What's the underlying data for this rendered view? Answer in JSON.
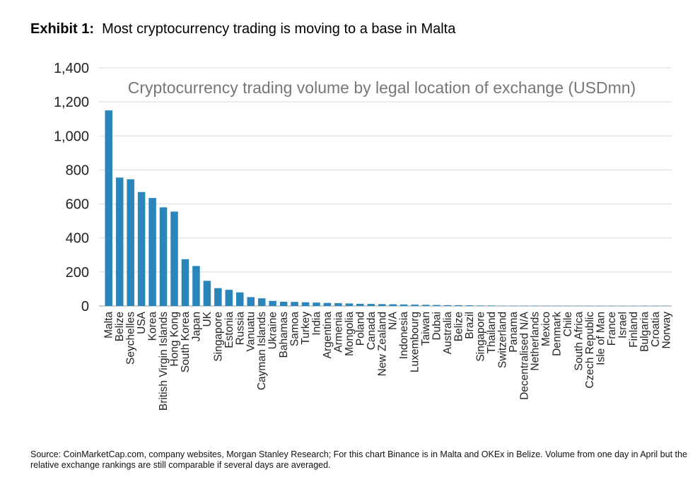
{
  "header": {
    "exhibit_label": "Exhibit 1:",
    "title": "Most cryptocurrency trading is moving to a base in Malta"
  },
  "chart_data": {
    "type": "bar",
    "title": "Cryptocurrency trading volume by legal location of exchange (USDmn)",
    "xlabel": "",
    "ylabel": "",
    "ylim": [
      0,
      1400
    ],
    "yticks": [
      0,
      200,
      400,
      600,
      800,
      1000,
      1200,
      1400
    ],
    "ytick_labels": [
      "0",
      "200",
      "400",
      "600",
      "800",
      "1,000",
      "1,200",
      "1,400"
    ],
    "grid": true,
    "bar_color": "#2a86ba",
    "categories": [
      "Malta",
      "Belize",
      "Seychelles",
      "USA",
      "Korea",
      "British Virgin Islands",
      "Hong Kong",
      "South Korea",
      "Japan",
      "UK",
      "Singapore",
      "Estonia",
      "Russia",
      "Vanuatu",
      "Cayman Islands",
      "Ukraine",
      "Bahamas",
      "Samoa",
      "Turkey",
      "India",
      "Argentina",
      "Armenia",
      "Mongolia",
      "Poland",
      "Canada",
      "New Zealand",
      "N/A",
      "Indonesia",
      "Luxembourg",
      "Taiwan",
      "Dubai",
      "Australia",
      "Belize",
      "Brazil",
      "Singapore",
      "Thailand",
      "Switzerland",
      "Panama",
      "Decentralised N/A",
      "Netherlands",
      "Mexico",
      "Denmark",
      "Chile",
      "South Africa",
      "Czech Republic",
      "Isle of Man",
      "France",
      "Israel",
      "Finland",
      "Bulgaria",
      "Croatia",
      "Norway"
    ],
    "values": [
      1150,
      755,
      745,
      670,
      635,
      580,
      555,
      275,
      235,
      148,
      105,
      95,
      80,
      52,
      45,
      30,
      25,
      24,
      22,
      20,
      18,
      17,
      15,
      13,
      12,
      11,
      10,
      9,
      8,
      7,
      6,
      5,
      5,
      4,
      3,
      3,
      2,
      2,
      2,
      2,
      1,
      1,
      1,
      1,
      1,
      1,
      1,
      1,
      1,
      1,
      1,
      1
    ]
  },
  "source_note": "Source: CoinMarketCap.com, company websites, Morgan Stanley Research; For this chart Binance is in Malta and OKEx in Belize. Volume from one day in April but the relative exchange rankings are still comparable if several days are averaged."
}
